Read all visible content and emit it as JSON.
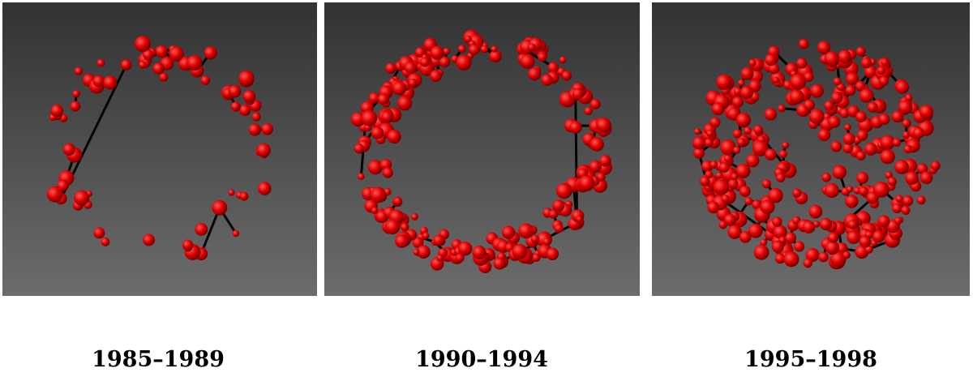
{
  "panels": [
    {
      "caption": "1985–1989"
    },
    {
      "caption": "1990–1994"
    },
    {
      "caption": "1995–1998"
    }
  ]
}
